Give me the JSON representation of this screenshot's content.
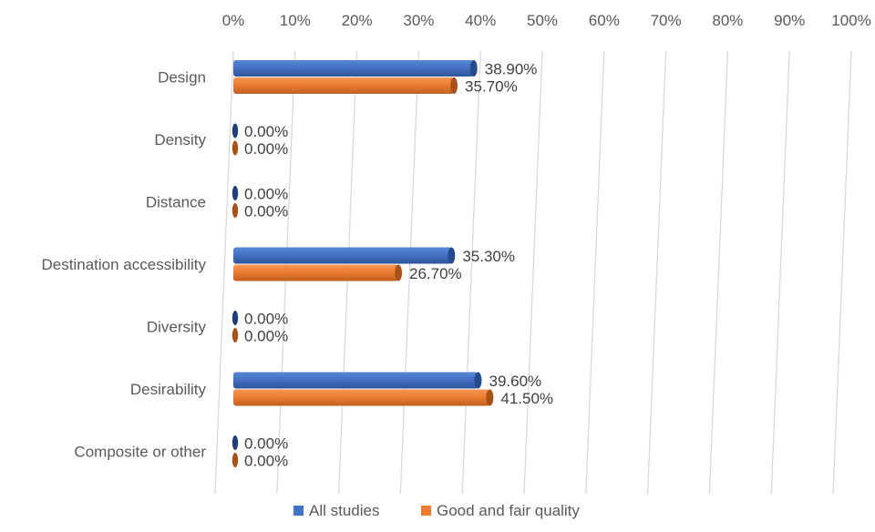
{
  "chart_data": {
    "type": "bar",
    "orientation": "horizontal",
    "categories": [
      "Design",
      "Density",
      "Distance",
      "Destination accessibility",
      "Diversity",
      "Desirability",
      "Composite or other"
    ],
    "series": [
      {
        "name": "All studies",
        "values": [
          38.9,
          0,
          0,
          35.3,
          0,
          39.6,
          0
        ],
        "labels": [
          "38.90%",
          "0.00%",
          "0.00%",
          "35.30%",
          "0.00%",
          "39.60%",
          "0.00%"
        ],
        "color": "#4472C4"
      },
      {
        "name": "Good and fair quality",
        "values": [
          35.7,
          0,
          0,
          26.7,
          0,
          41.5,
          0
        ],
        "labels": [
          "35.70%",
          "0.00%",
          "0.00%",
          "26.70%",
          "0.00%",
          "41.50%",
          "0.00%"
        ],
        "color": "#ED7D31"
      }
    ],
    "xlim": [
      0,
      100
    ],
    "x_ticks": [
      "0%",
      "10%",
      "20%",
      "30%",
      "40%",
      "50%",
      "60%",
      "70%",
      "80%",
      "90%",
      "100%"
    ],
    "axis_position": "top",
    "grid": true,
    "legend_position": "bottom"
  }
}
